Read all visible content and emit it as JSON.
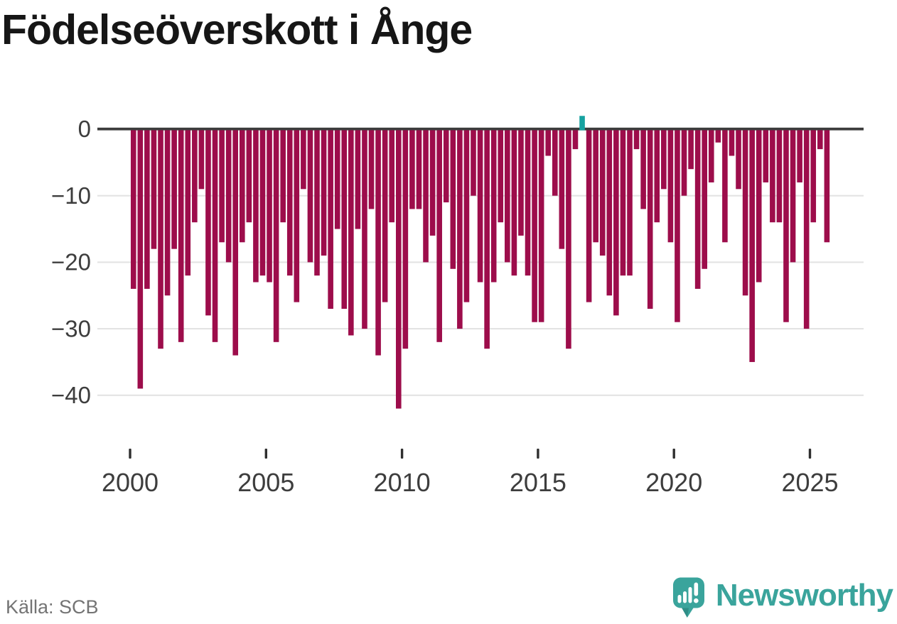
{
  "title": "Födelseöverskott i Ånge",
  "source": "Källa: SCB",
  "branding": {
    "wordmark": "Newsworthy"
  },
  "colors": {
    "title": "#161616",
    "bar_negative": "#9d0d4b",
    "bar_positive": "#16a2a0",
    "zero_axis": "#3c3c3c",
    "grid": "#e2e2e2",
    "tick_mark": "#2f2f2f",
    "axis_label": "#3d3d3d",
    "source_text": "#747474",
    "logo_teal": "#3aa49c"
  },
  "chart_data": {
    "type": "bar",
    "title": "Födelseöverskott i Ånge",
    "xlabel": "",
    "ylabel": "",
    "interval": "quarter",
    "x_start": "2000-Q1",
    "x_end": "2025-Q3",
    "values": [
      -24,
      -39,
      -24,
      -18,
      -33,
      -25,
      -18,
      -32,
      -22,
      -14,
      -9,
      -28,
      -32,
      -17,
      -20,
      -34,
      -17,
      -14,
      -23,
      -22,
      -23,
      -32,
      -14,
      -22,
      -26,
      -9,
      -20,
      -22,
      -19,
      -27,
      -15,
      -27,
      -31,
      -15,
      -30,
      -12,
      -34,
      -26,
      -14,
      -42,
      -33,
      -12,
      -12,
      -20,
      -16,
      -32,
      -11,
      -21,
      -30,
      -26,
      -10,
      -23,
      -33,
      -23,
      -14,
      -20,
      -22,
      -16,
      -22,
      -29,
      -29,
      -4,
      -10,
      -18,
      -33,
      -3,
      2,
      -26,
      -17,
      -19,
      -25,
      -28,
      -22,
      -22,
      -3,
      -12,
      -27,
      -14,
      -9,
      -17,
      -29,
      -10,
      -6,
      -24,
      -21,
      -8,
      -2,
      -17,
      -4,
      -9,
      -25,
      -35,
      -23,
      -8,
      -14,
      -14,
      -29,
      -20,
      -8,
      -30,
      -14,
      -3,
      -17
    ],
    "x_tick_years": [
      2000,
      2005,
      2010,
      2015,
      2020,
      2025
    ],
    "x_tick_labels": [
      "2000",
      "2005",
      "2010",
      "2015",
      "2020",
      "2025"
    ],
    "y_ticks": [
      0,
      -10,
      -20,
      -30,
      -40
    ],
    "y_tick_labels": [
      "0",
      "−10",
      "−20",
      "−30",
      "−40"
    ],
    "ylim": [
      -44,
      3
    ],
    "grid": "horizontal",
    "legend": "none"
  }
}
